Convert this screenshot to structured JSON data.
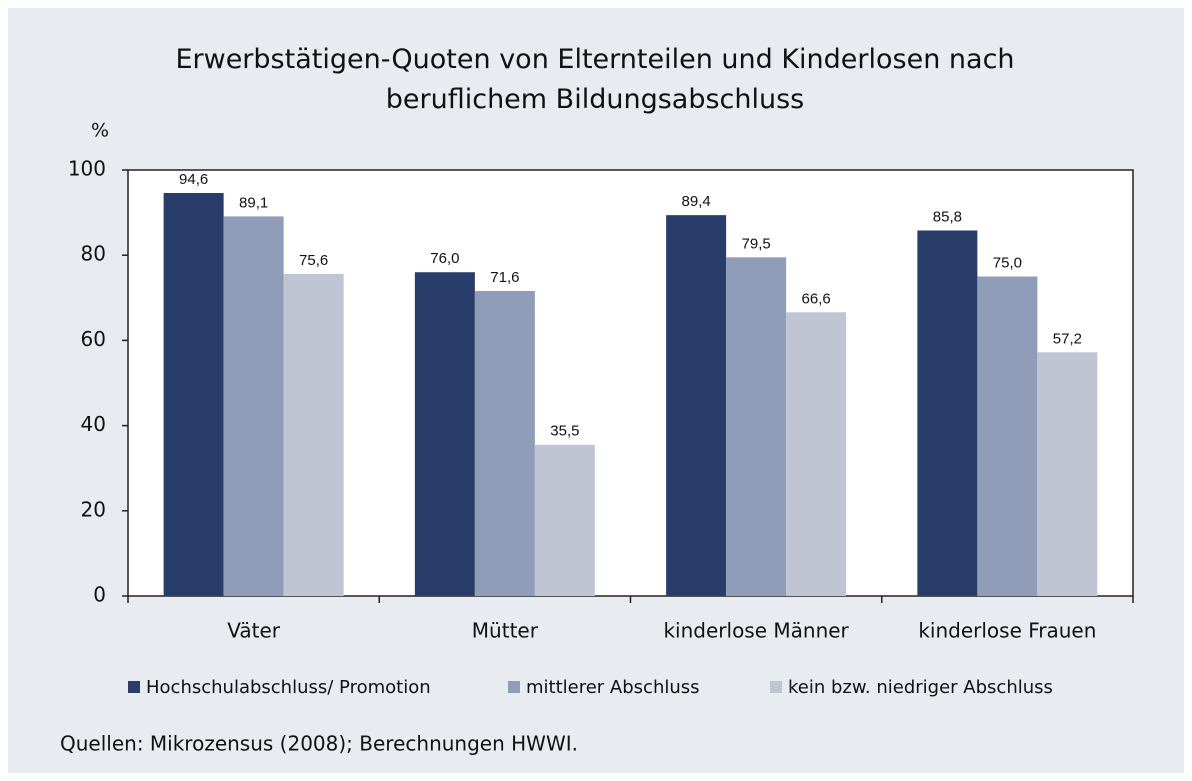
{
  "chart_data": {
    "type": "bar",
    "title": "Erwerbstätigen-Quoten von Elternteilen und  Kinderlosen nach beruflichem Bildungsabschluss",
    "ylabel": "%",
    "categories": [
      "Väter",
      "Mütter",
      "kinderlose Männer",
      "kinderlose Frauen"
    ],
    "series": [
      {
        "name": "Hochschulabschluss/ Promotion",
        "color": "#293d6b",
        "values": [
          94.6,
          76.0,
          89.4,
          85.8
        ],
        "value_labels": [
          "94,6",
          "76,0",
          "89,4",
          "85,8"
        ]
      },
      {
        "name": "mittlerer Abschluss",
        "color": "#8f9db8",
        "values": [
          89.1,
          71.6,
          79.5,
          75.0
        ],
        "value_labels": [
          "89,1",
          "71,6",
          "79,5",
          "75,0"
        ]
      },
      {
        "name": "kein bzw. niedriger Abschluss",
        "color": "#c0c5d4",
        "values": [
          75.6,
          35.5,
          66.6,
          57.2
        ],
        "value_labels": [
          "75,6",
          "35,5",
          "66,6",
          "57,2"
        ]
      }
    ],
    "ylim": [
      0,
      100
    ],
    "yticks": [
      0,
      20,
      40,
      60,
      80,
      100
    ],
    "note": "Quellen: Mikrozensus (2008); Berechnungen HWWI."
  }
}
